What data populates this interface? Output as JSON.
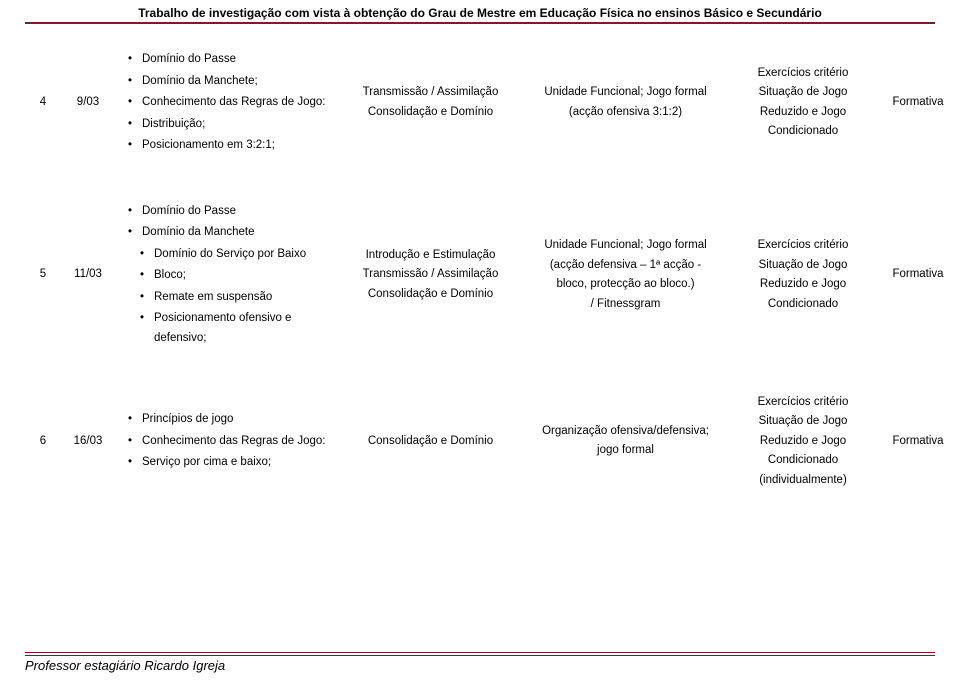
{
  "header": "Trabalho de investigação com vista à obtenção do Grau de Mestre em Educação Física no ensinos Básico e Secundário",
  "footer": "Professor estagiário Ricardo Igreja",
  "rows": [
    {
      "num": "4",
      "date": "9/03",
      "content": [
        "Domínio do Passe",
        "Domínio da Manchete;",
        "Conhecimento das Regras de Jogo:",
        "Distribuição;",
        "Posicionamento em 3:2:1;"
      ],
      "method": [
        "Transmissão / Assimilação",
        "",
        "Consolidação e Domínio"
      ],
      "func": [
        "Unidade Funcional; Jogo formal",
        "(acção ofensiva 3:1:2)"
      ],
      "ex": [
        "Exercícios critério",
        "Situação de Jogo",
        "Reduzido e Jogo",
        "Condicionado"
      ],
      "form": "Formativa"
    },
    {
      "num": "5",
      "date": "11/03",
      "topcontent": [
        "Domínio do Passe",
        "Domínio da Manchete"
      ],
      "subcontent": [
        "Domínio do Serviço por Baixo",
        "Bloco;",
        "Remate em suspensão",
        "Posicionamento ofensivo e defensivo;"
      ],
      "method": [
        "Introdução e Estimulação",
        "Transmissão / Assimilação",
        "Consolidação e Domínio"
      ],
      "func": [
        "Unidade Funcional; Jogo formal",
        "(acção defensiva – 1ª acção -",
        "bloco, protecção ao bloco.)",
        "/ Fitnessgram"
      ],
      "ex": [
        "Exercícios critério",
        "Situação de Jogo",
        "Reduzido e Jogo",
        "Condicionado"
      ],
      "form": "Formativa"
    },
    {
      "num": "6",
      "date": "16/03",
      "content": [
        "Princípios de jogo",
        "Conhecimento das Regras de Jogo:",
        "Serviço por cima e baixo;"
      ],
      "method": [
        "Consolidação e Domínio"
      ],
      "func": [
        "Organização ofensiva/defensiva;",
        "jogo formal"
      ],
      "ex": [
        "Exercícios critério",
        "Situação de Jogo",
        "Reduzido e Jogo",
        "Condicionado",
        "(individualmente)"
      ],
      "form": "Formativa"
    }
  ]
}
